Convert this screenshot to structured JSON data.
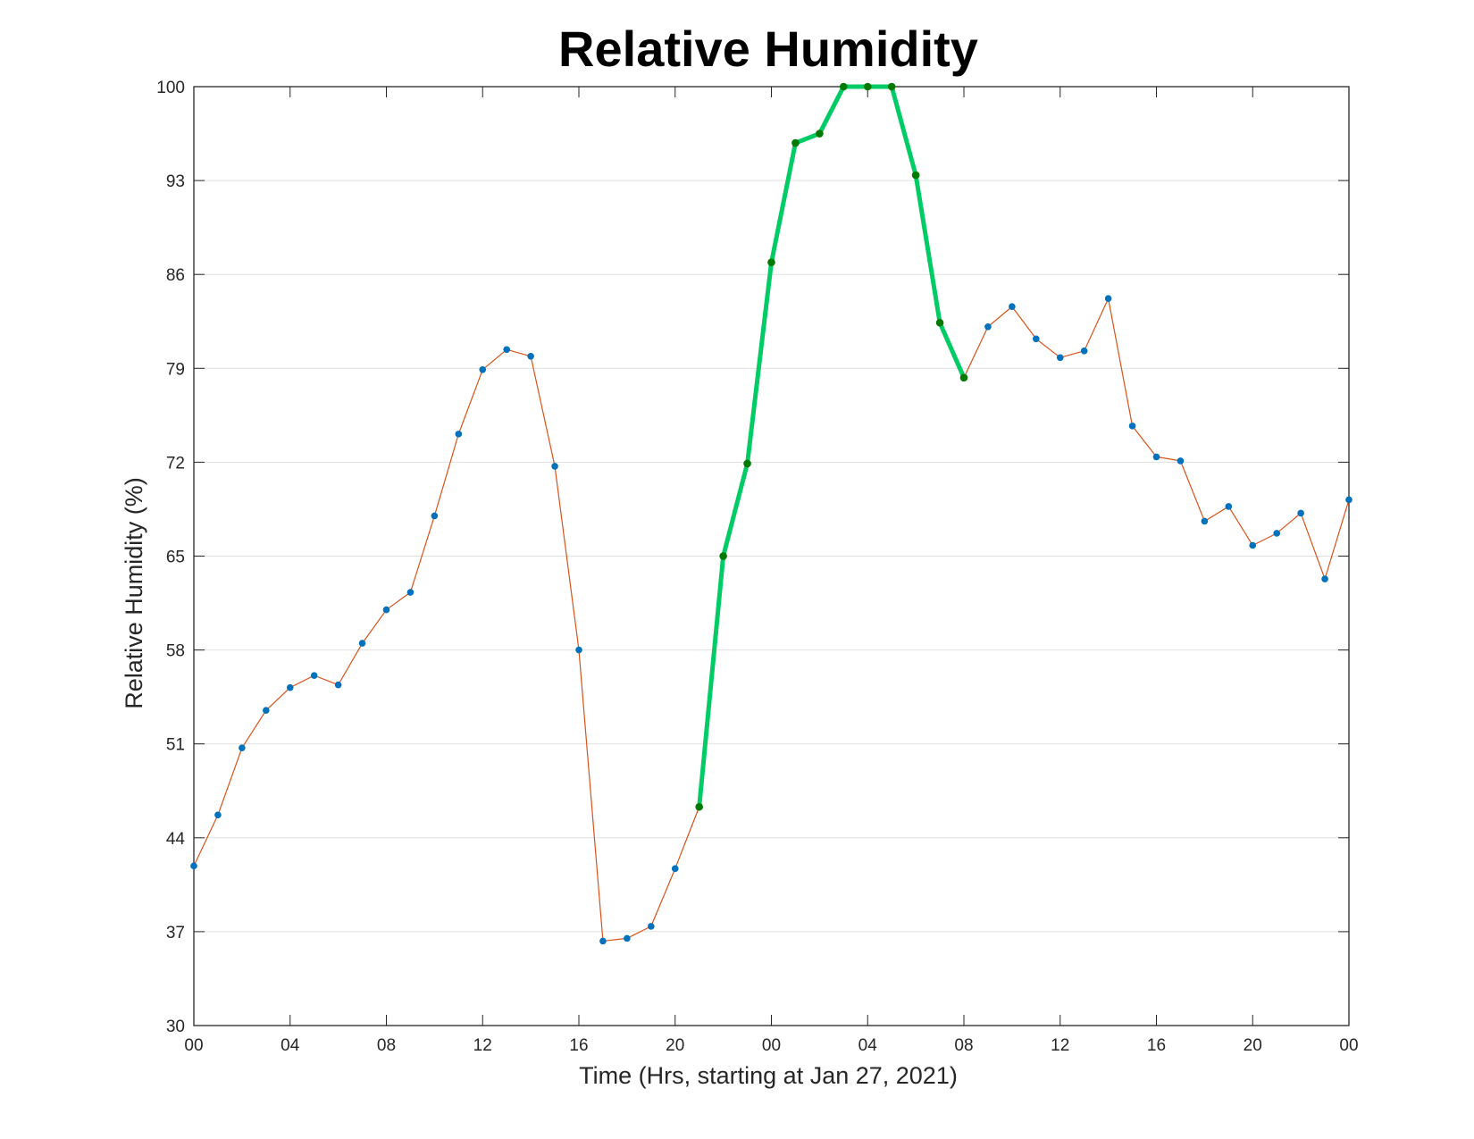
{
  "chart_data": {
    "type": "line",
    "title": "Relative Humidity",
    "xlabel": "Time (Hrs, starting at Jan 27, 2021)",
    "ylabel": "Relative Humidity (%)",
    "x_start": "2021-01-27 00:00",
    "x_tick_labels": [
      "00",
      "04",
      "08",
      "12",
      "16",
      "20",
      "00",
      "04",
      "08",
      "12",
      "16",
      "20",
      "00"
    ],
    "ylim": [
      30,
      100
    ],
    "yticks": [
      30,
      37,
      44,
      51,
      58,
      65,
      72,
      79,
      86,
      93,
      100
    ],
    "grid": "horizontal",
    "series": [
      {
        "values": [
          41.9,
          45.7,
          50.7,
          53.5,
          55.2,
          56.1,
          55.4,
          58.5,
          61.0,
          62.3,
          68.0,
          74.1,
          78.9,
          80.4,
          79.9,
          71.7,
          58.0,
          36.3,
          36.5,
          37.4,
          41.7,
          46.3,
          65.0,
          71.9,
          86.9,
          95.8,
          96.5,
          100,
          100,
          100,
          93.4,
          82.4,
          78.3,
          82.1,
          83.6,
          81.2,
          79.8,
          80.3,
          84.2,
          74.7,
          72.4,
          72.1,
          67.6,
          68.7,
          65.8,
          66.7,
          68.2,
          63.3,
          69.2
        ],
        "color": "#d95319",
        "marker_color": "#0072bd"
      },
      {
        "start_index": 21,
        "values": [
          46.3,
          65.0,
          71.9,
          86.9,
          95.8,
          96.5,
          100,
          100,
          100,
          93.4,
          82.4,
          78.3
        ],
        "color": "#00cc66",
        "marker_color": "#007a00"
      }
    ]
  }
}
